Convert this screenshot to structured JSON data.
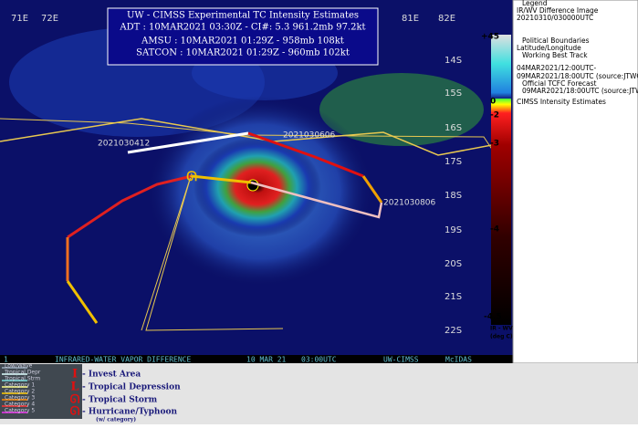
{
  "title_box": {
    "title": "UW - CIMSS Experimental TC Intensity Estimates",
    "lines": [
      "ADT : 10MAR2021 03:30Z - CI#: 5.3  961.2mb  97.2kt",
      "AMSU : 10MAR2021 01:29Z - 958mb  108kt",
      "SATCON : 10MAR2021 01:29Z - 960mb  102kt"
    ]
  },
  "longitudes": [
    "71E",
    "72E",
    "81E",
    "82E"
  ],
  "latitudes": [
    "14S",
    "15S",
    "16S",
    "17S",
    "18S",
    "19S",
    "20S",
    "21S",
    "22S"
  ],
  "track_labels": [
    "2021030412",
    "2021030606",
    "2021030806"
  ],
  "footer_bar": [
    "1",
    "INFRARED-WATER VAPOR DIFFERENCE",
    "10 MAR 21",
    "03:00UTC",
    "UW-CIMSS",
    "McIDAS"
  ],
  "colorbar": {
    "labels": [
      "+45",
      "0",
      "-2",
      "-3",
      "-4",
      "-4.5"
    ],
    "unit": [
      "IR - WV",
      "(deg C)"
    ]
  },
  "legend": [
    "Legend",
    "IR/WV Difference Image",
    "20210310/030000UTC",
    "Political Boundaries",
    "Latitude/Longitude",
    "Working Best Track",
    "04MAR2021/12:00UTC-",
    "09MAR2021/18:00UTC  (source:JTWC)",
    "Official TCFC Forecast",
    "09MAR2021/18:00UTC  (source:JTWC)",
    "CIMSS Intensity Estimates"
  ],
  "category_key": [
    "Low/Wave",
    "Tropical Depr",
    "Tropical Strm",
    "Category 1",
    "Category 2",
    "Category 3",
    "Category 4",
    "Category 5"
  ],
  "symbol_key": [
    "- Invest Area",
    "- Tropical Depression",
    "- Tropical Storm",
    "- Hurricane/Typhoon",
    "(w/ category)"
  ]
}
